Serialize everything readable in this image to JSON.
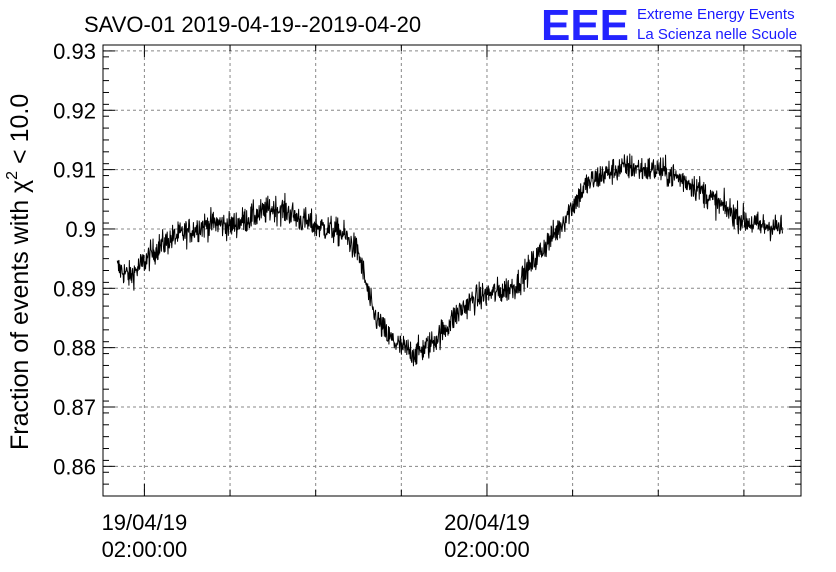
{
  "chart_data": {
    "type": "line",
    "title": "SAVO-01 2019-04-19--2019-04-20",
    "ylabel": "Fraction of events with χ² < 10.0",
    "ylabel_parts": {
      "prefix": "Fraction of events with χ",
      "sup": "2",
      "suffix": " < 10.0"
    },
    "xlabel": "",
    "ylim": [
      0.855,
      0.931
    ],
    "yticks": [
      0.86,
      0.87,
      0.88,
      0.89,
      0.9,
      0.91,
      0.92,
      0.93
    ],
    "ytick_labels": [
      "0.86",
      "0.87",
      "0.88",
      "0.89",
      "0.9",
      "0.91",
      "0.92",
      "0.93"
    ],
    "xlim_hours": [
      -2.9,
      46.0
    ],
    "xticks": [
      {
        "hour": 0,
        "date": "19/04/19",
        "time": "02:00:00"
      },
      {
        "hour": 24,
        "date": "20/04/19",
        "time": "02:00:00"
      }
    ],
    "x_start_hour": -1.9,
    "x_end_hour": 44.7,
    "grid": true,
    "series": [
      {
        "color": "#000000",
        "profile": [
          [
            -1.9,
            0.8935
          ],
          [
            -1.0,
            0.892
          ],
          [
            0.0,
            0.8945
          ],
          [
            1.0,
            0.897
          ],
          [
            2.0,
            0.8985
          ],
          [
            3.0,
            0.8995
          ],
          [
            4.0,
            0.9005
          ],
          [
            5.0,
            0.901
          ],
          [
            6.0,
            0.9005
          ],
          [
            7.0,
            0.9015
          ],
          [
            8.0,
            0.9025
          ],
          [
            9.0,
            0.9035
          ],
          [
            10.0,
            0.903
          ],
          [
            11.0,
            0.9015
          ],
          [
            12.0,
            0.9005
          ],
          [
            13.0,
            0.9
          ],
          [
            14.0,
            0.899
          ],
          [
            15.0,
            0.896
          ],
          [
            16.0,
            0.886
          ],
          [
            17.0,
            0.882
          ],
          [
            18.0,
            0.88
          ],
          [
            19.0,
            0.879
          ],
          [
            20.0,
            0.8805
          ],
          [
            21.0,
            0.883
          ],
          [
            22.0,
            0.886
          ],
          [
            23.0,
            0.888
          ],
          [
            24.0,
            0.889
          ],
          [
            25.0,
            0.8895
          ],
          [
            26.0,
            0.8905
          ],
          [
            27.0,
            0.8935
          ],
          [
            28.0,
            0.897
          ],
          [
            29.0,
            0.9
          ],
          [
            30.0,
            0.904
          ],
          [
            31.0,
            0.9075
          ],
          [
            32.0,
            0.909
          ],
          [
            33.0,
            0.91
          ],
          [
            34.0,
            0.9105
          ],
          [
            35.0,
            0.91
          ],
          [
            36.0,
            0.91
          ],
          [
            37.0,
            0.909
          ],
          [
            38.0,
            0.908
          ],
          [
            39.0,
            0.9065
          ],
          [
            40.0,
            0.9045
          ],
          [
            41.0,
            0.903
          ],
          [
            42.0,
            0.9015
          ],
          [
            43.0,
            0.9005
          ],
          [
            44.0,
            0.9005
          ],
          [
            44.7,
            0.9
          ]
        ],
        "noise_amplitude": 0.0045,
        "sample_count": 1600
      }
    ]
  },
  "logo": {
    "mark": "EEE",
    "line1": "Extreme Energy Events",
    "line2": "La Scienza nelle Scuole",
    "color": "#1a1aff"
  }
}
